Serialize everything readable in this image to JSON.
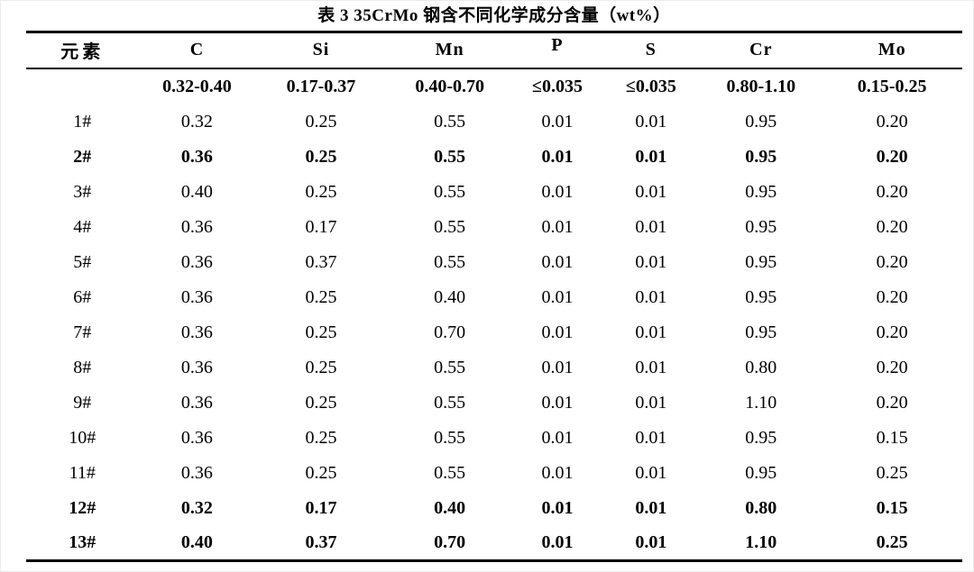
{
  "title": "表 3 35CrMo 钢含不同化学成分含量（wt%）",
  "colors": {
    "background": "#ffffff",
    "text": "#000000",
    "rule": "#000000"
  },
  "table": {
    "columns": [
      "元素",
      "C",
      "Si",
      "Mn",
      "P",
      "S",
      "Cr",
      "Mo"
    ],
    "range_row": [
      "",
      "0.32-0.40",
      "0.17-0.37",
      "0.40-0.70",
      "≤0.035",
      "≤0.035",
      "0.80-1.10",
      "0.15-0.25"
    ],
    "rows": [
      {
        "label": "1#",
        "values": [
          "0.32",
          "0.25",
          "0.55",
          "0.01",
          "0.01",
          "0.95",
          "0.20"
        ],
        "bold": false
      },
      {
        "label": "2#",
        "values": [
          "0.36",
          "0.25",
          "0.55",
          "0.01",
          "0.01",
          "0.95",
          "0.20"
        ],
        "bold": true
      },
      {
        "label": "3#",
        "values": [
          "0.40",
          "0.25",
          "0.55",
          "0.01",
          "0.01",
          "0.95",
          "0.20"
        ],
        "bold": false
      },
      {
        "label": "4#",
        "values": [
          "0.36",
          "0.17",
          "0.55",
          "0.01",
          "0.01",
          "0.95",
          "0.20"
        ],
        "bold": false
      },
      {
        "label": "5#",
        "values": [
          "0.36",
          "0.37",
          "0.55",
          "0.01",
          "0.01",
          "0.95",
          "0.20"
        ],
        "bold": false
      },
      {
        "label": "6#",
        "values": [
          "0.36",
          "0.25",
          "0.40",
          "0.01",
          "0.01",
          "0.95",
          "0.20"
        ],
        "bold": false
      },
      {
        "label": "7#",
        "values": [
          "0.36",
          "0.25",
          "0.70",
          "0.01",
          "0.01",
          "0.95",
          "0.20"
        ],
        "bold": false
      },
      {
        "label": "8#",
        "values": [
          "0.36",
          "0.25",
          "0.55",
          "0.01",
          "0.01",
          "0.80",
          "0.20"
        ],
        "bold": false
      },
      {
        "label": "9#",
        "values": [
          "0.36",
          "0.25",
          "0.55",
          "0.01",
          "0.01",
          "1.10",
          "0.20"
        ],
        "bold": false
      },
      {
        "label": "10#",
        "values": [
          "0.36",
          "0.25",
          "0.55",
          "0.01",
          "0.01",
          "0.95",
          "0.15"
        ],
        "bold": false
      },
      {
        "label": "11#",
        "values": [
          "0.36",
          "0.25",
          "0.55",
          "0.01",
          "0.01",
          "0.95",
          "0.25"
        ],
        "bold": false
      },
      {
        "label": "12#",
        "values": [
          "0.32",
          "0.17",
          "0.40",
          "0.01",
          "0.01",
          "0.80",
          "0.15"
        ],
        "bold": true
      },
      {
        "label": "13#",
        "values": [
          "0.40",
          "0.37",
          "0.70",
          "0.01",
          "0.01",
          "1.10",
          "0.25"
        ],
        "bold": true
      }
    ]
  }
}
